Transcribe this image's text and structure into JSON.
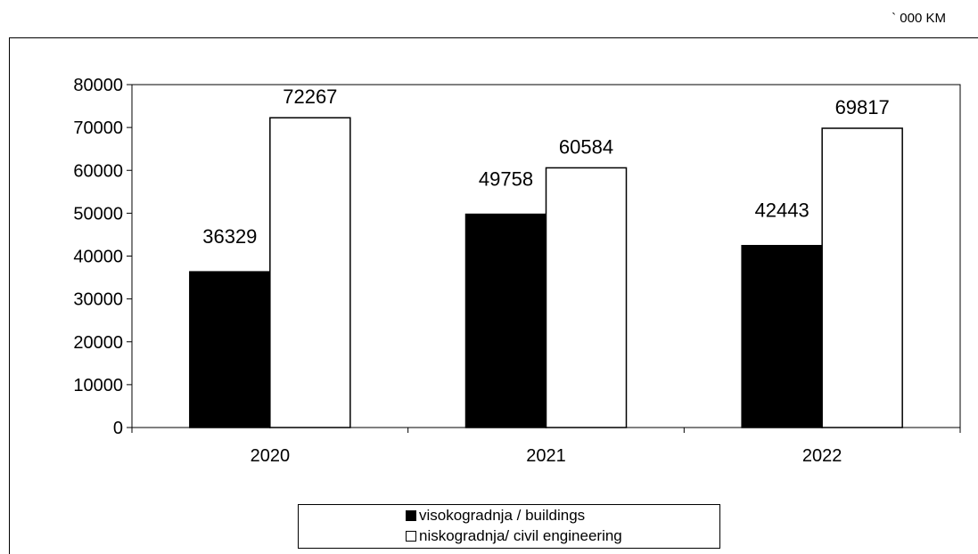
{
  "unit_label": "` 000 KM",
  "colors": {
    "buildings": "#000000",
    "civil": "#ffffff",
    "outline": "#000000"
  },
  "chart_data": {
    "type": "bar",
    "categories": [
      "2020",
      "2021",
      "2022"
    ],
    "series": [
      {
        "name": "visokogradnja / buildings",
        "values": [
          36329,
          49758,
          42443
        ]
      },
      {
        "name": "niskogradnja/ civil engineering",
        "values": [
          72267,
          60584,
          69817
        ]
      }
    ],
    "ylim": [
      0,
      80000
    ],
    "yticks": [
      0,
      10000,
      20000,
      30000,
      40000,
      50000,
      60000,
      70000,
      80000
    ],
    "grid": false,
    "legend_position": "bottom",
    "data_labels": true
  }
}
